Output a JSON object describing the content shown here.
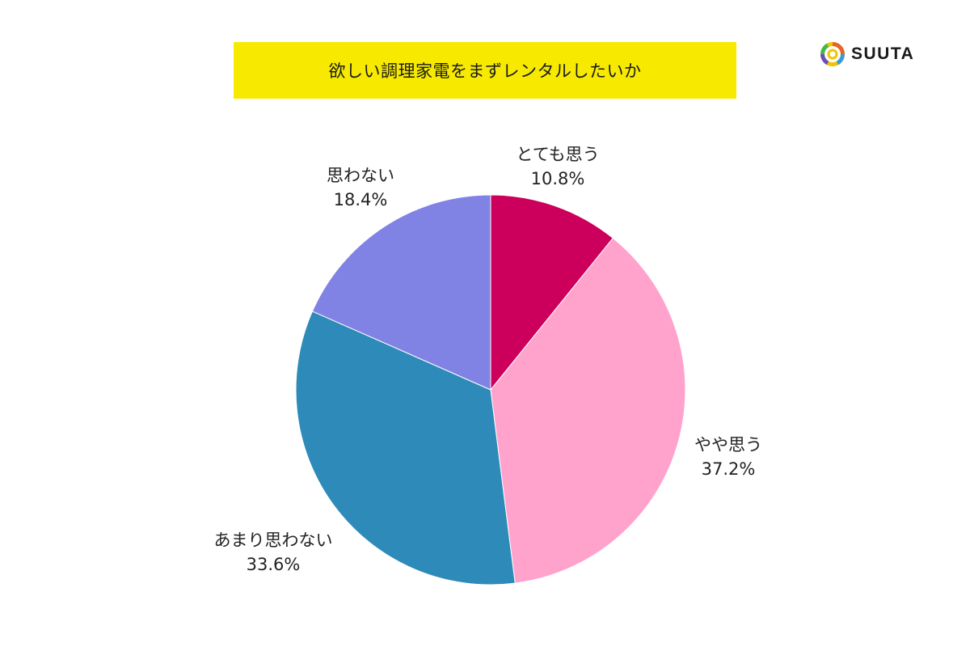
{
  "title": "欲しい調理家電をまずレンタルしたいか",
  "brand": {
    "name": "SUUTA",
    "icon": "ring-logo-icon"
  },
  "chart_data": {
    "type": "pie",
    "title": "欲しい調理家電をまずレンタルしたいか",
    "start_angle": "12 o'clock",
    "direction": "clockwise",
    "categories": [
      "とても思う",
      "やや思う",
      "あまり思わない",
      "思わない"
    ],
    "values": [
      10.8,
      37.2,
      33.6,
      18.4
    ],
    "unit": "%",
    "colors": [
      "#cc005c",
      "#ffa3cc",
      "#2e8ab8",
      "#8083e4"
    ],
    "labels": [
      {
        "name": "とても思う",
        "value": "10.8%"
      },
      {
        "name": "やや思う",
        "value": "37.2%"
      },
      {
        "name": "あまり思わない",
        "value": "33.6%"
      },
      {
        "name": "思わない",
        "value": "18.4%"
      }
    ],
    "legend": "none (direct labels)"
  }
}
